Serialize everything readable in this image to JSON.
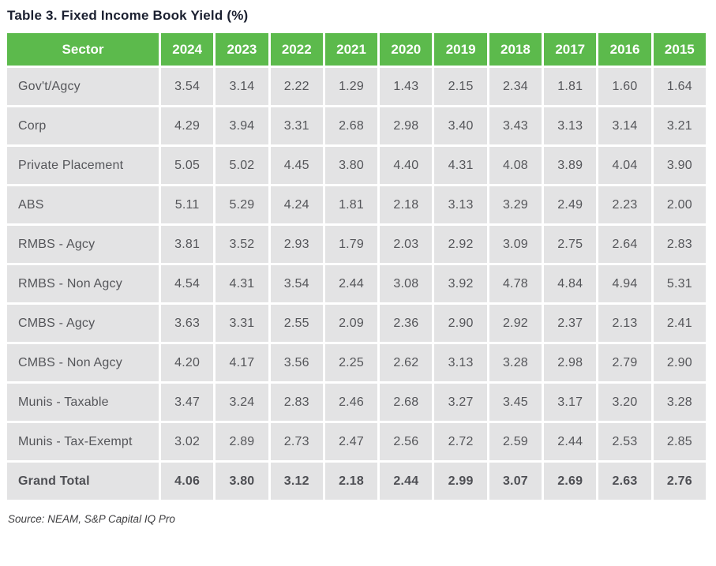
{
  "title": "Table 3. Fixed Income Book Yield (%)",
  "source": "Source: NEAM, S&P Capital IQ Pro",
  "colors": {
    "header_green": "#5cba4c",
    "cell_gray": "#e3e3e4",
    "header_text": "#ffffff",
    "body_text": "#55565a",
    "title_text": "#1b2030"
  },
  "chart_data": {
    "type": "table",
    "title": "Table 3. Fixed Income Book Yield (%)",
    "columns": [
      "Sector",
      "2024",
      "2023",
      "2022",
      "2021",
      "2020",
      "2019",
      "2018",
      "2017",
      "2016",
      "2015"
    ],
    "rows": [
      {
        "sector": "Gov't/Agcy",
        "values": [
          "3.54",
          "3.14",
          "2.22",
          "1.29",
          "1.43",
          "2.15",
          "2.34",
          "1.81",
          "1.60",
          "1.64"
        ]
      },
      {
        "sector": "Corp",
        "values": [
          "4.29",
          "3.94",
          "3.31",
          "2.68",
          "2.98",
          "3.40",
          "3.43",
          "3.13",
          "3.14",
          "3.21"
        ]
      },
      {
        "sector": "Private Placement",
        "values": [
          "5.05",
          "5.02",
          "4.45",
          "3.80",
          "4.40",
          "4.31",
          "4.08",
          "3.89",
          "4.04",
          "3.90"
        ]
      },
      {
        "sector": "ABS",
        "values": [
          "5.11",
          "5.29",
          "4.24",
          "1.81",
          "2.18",
          "3.13",
          "3.29",
          "2.49",
          "2.23",
          "2.00"
        ]
      },
      {
        "sector": "RMBS - Agcy",
        "values": [
          "3.81",
          "3.52",
          "2.93",
          "1.79",
          "2.03",
          "2.92",
          "3.09",
          "2.75",
          "2.64",
          "2.83"
        ]
      },
      {
        "sector": "RMBS - Non Agcy",
        "values": [
          "4.54",
          "4.31",
          "3.54",
          "2.44",
          "3.08",
          "3.92",
          "4.78",
          "4.84",
          "4.94",
          "5.31"
        ]
      },
      {
        "sector": "CMBS - Agcy",
        "values": [
          "3.63",
          "3.31",
          "2.55",
          "2.09",
          "2.36",
          "2.90",
          "2.92",
          "2.37",
          "2.13",
          "2.41"
        ]
      },
      {
        "sector": "CMBS - Non Agcy",
        "values": [
          "4.20",
          "4.17",
          "3.56",
          "2.25",
          "2.62",
          "3.13",
          "3.28",
          "2.98",
          "2.79",
          "2.90"
        ]
      },
      {
        "sector": "Munis - Taxable",
        "values": [
          "3.47",
          "3.24",
          "2.83",
          "2.46",
          "2.68",
          "3.27",
          "3.45",
          "3.17",
          "3.20",
          "3.28"
        ]
      },
      {
        "sector": "Munis - Tax-Exempt",
        "values": [
          "3.02",
          "2.89",
          "2.73",
          "2.47",
          "2.56",
          "2.72",
          "2.59",
          "2.44",
          "2.53",
          "2.85"
        ]
      },
      {
        "sector": "Grand Total",
        "values": [
          "4.06",
          "3.80",
          "3.12",
          "2.18",
          "2.44",
          "2.99",
          "3.07",
          "2.69",
          "2.63",
          "2.76"
        ],
        "bold": true
      }
    ],
    "source": "Source: NEAM, S&P Capital IQ Pro"
  }
}
